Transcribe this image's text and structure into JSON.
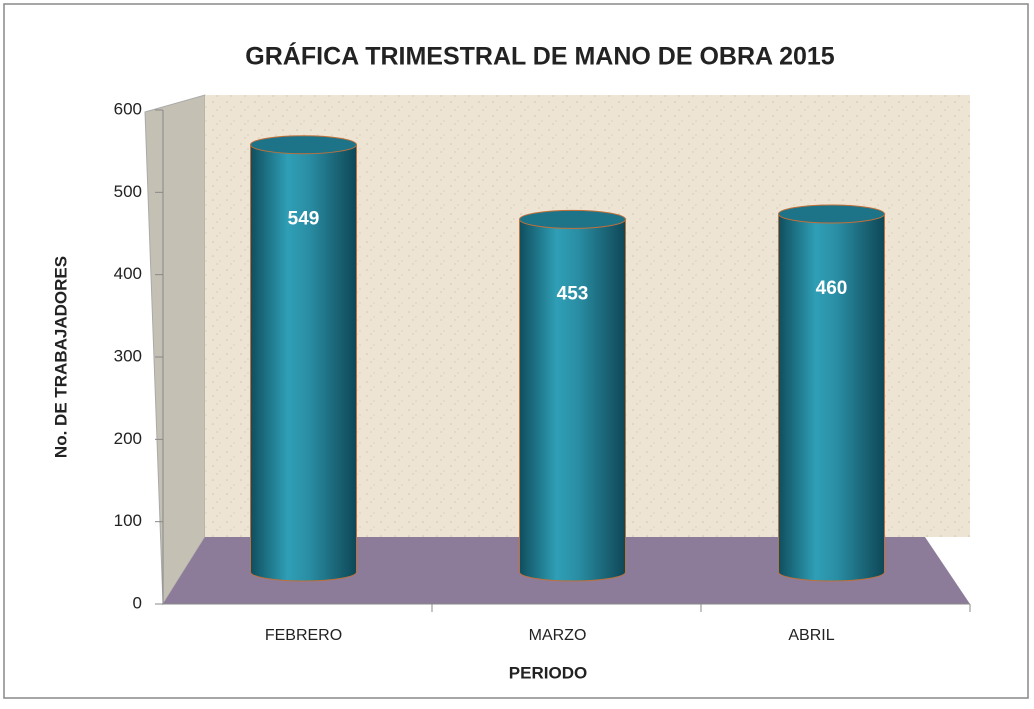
{
  "chart_data": {
    "type": "bar",
    "title": "GRÁFICA TRIMESTRAL DE MANO DE OBRA 2015",
    "categories": [
      "FEBRERO",
      "MARZO",
      "ABRIL"
    ],
    "values": [
      549,
      453,
      460
    ],
    "x_label": "PERIODO",
    "y_label": "No. DE TRABAJADORES",
    "color": "#1f7a90",
    "ylim": [
      0,
      600
    ],
    "yticks": [
      0,
      100,
      200,
      300,
      400,
      500,
      600
    ]
  }
}
